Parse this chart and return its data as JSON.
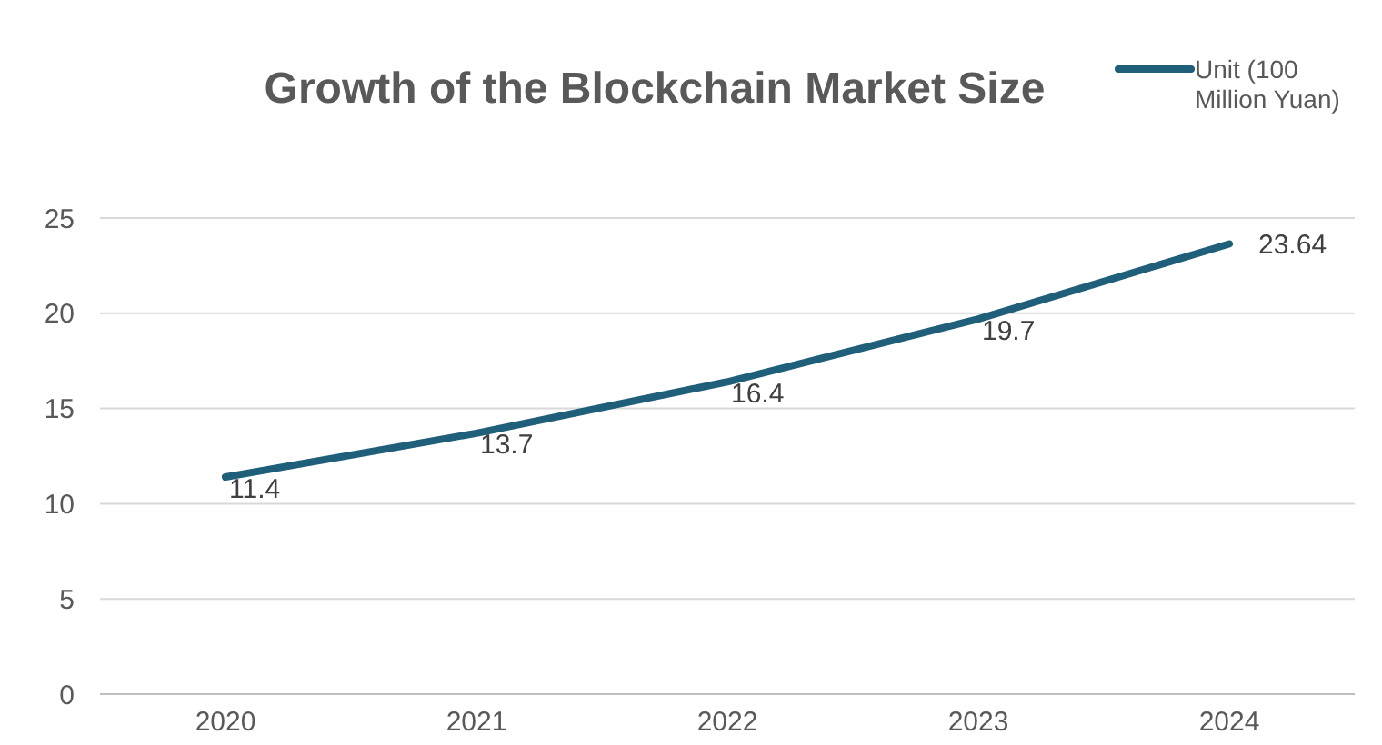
{
  "chart_data": {
    "type": "line",
    "title": "Growth of the Blockchain Market Size",
    "categories": [
      "2020",
      "2021",
      "2022",
      "2023",
      "2024"
    ],
    "series": [
      {
        "name": "Unit (100 Million Yuan)",
        "color": "#1f5f7a",
        "values": [
          11.4,
          13.7,
          16.4,
          19.7,
          23.64
        ]
      }
    ],
    "ylim": [
      0,
      25
    ],
    "yticks": [
      0,
      5,
      10,
      15,
      20,
      25
    ],
    "grid": "y",
    "legend": "top right",
    "data_labels": true,
    "marker": "none",
    "line_style": "solid"
  }
}
